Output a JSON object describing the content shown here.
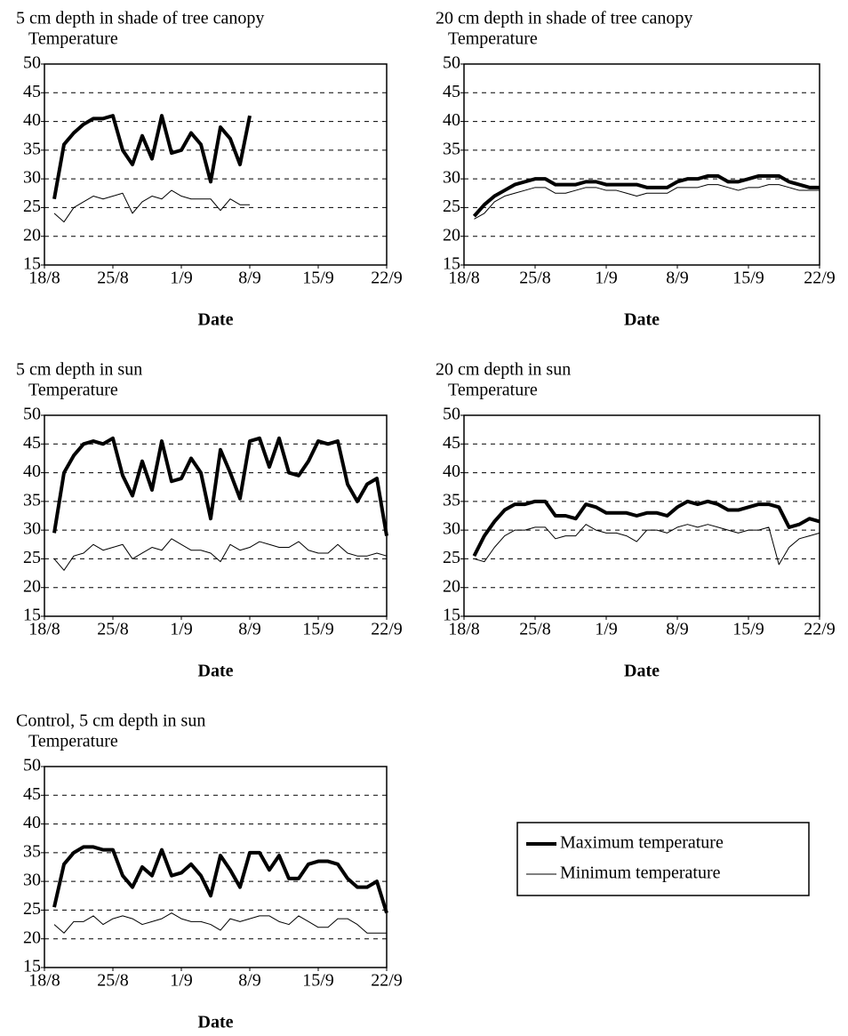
{
  "chart_data": [
    {
      "type": "line",
      "title": "5 cm depth in shade of tree canopy",
      "y_label": "Temperature",
      "x_label": "Date",
      "x": [
        "19/8",
        "20/8",
        "21/8",
        "22/8",
        "23/8",
        "24/8",
        "25/8",
        "26/8",
        "27/8",
        "28/8",
        "29/8",
        "30/8",
        "31/8",
        "1/9",
        "2/9",
        "3/9",
        "4/9",
        "5/9",
        "6/9",
        "7/9",
        "8/9"
      ],
      "series": [
        {
          "color": "#000000",
          "values": [
            26.5,
            36,
            38,
            39.5,
            40.5,
            40.5,
            41,
            35,
            32.5,
            37.5,
            33.5,
            41,
            34.5,
            35,
            38,
            36,
            29.5,
            39,
            37,
            32.5,
            41
          ]
        },
        {
          "color": "#000000",
          "values": [
            24,
            22.5,
            25,
            26,
            27,
            26.5,
            27,
            27.5,
            24,
            26,
            27,
            26.5,
            28,
            27,
            26.5,
            26.5,
            26.5,
            24.5,
            26.5,
            25.5,
            25.5
          ]
        }
      ],
      "xlim": [
        "18/8",
        "22/9"
      ],
      "xticks": [
        "18/8",
        "25/8",
        "1/9",
        "8/9",
        "15/9",
        "22/9"
      ],
      "ylim": [
        15,
        50
      ],
      "yticks": [
        15,
        20,
        25,
        30,
        35,
        40,
        45,
        50
      ],
      "grid": true
    },
    {
      "type": "line",
      "title": "20 cm depth in shade of tree canopy",
      "y_label": "Temperature",
      "x_label": "Date",
      "x": [
        "19/8",
        "20/8",
        "21/8",
        "22/8",
        "23/8",
        "24/8",
        "25/8",
        "26/8",
        "27/8",
        "28/8",
        "29/8",
        "30/8",
        "31/8",
        "1/9",
        "2/9",
        "3/9",
        "4/9",
        "5/9",
        "6/9",
        "7/9",
        "8/9",
        "9/9",
        "10/9",
        "11/9",
        "12/9",
        "13/9",
        "14/9",
        "15/9",
        "16/9",
        "17/9",
        "18/9",
        "19/9",
        "20/9",
        "21/9",
        "22/9"
      ],
      "series": [
        {
          "color": "#000000",
          "values": [
            23.5,
            25.5,
            27,
            28,
            29,
            29.5,
            30,
            30,
            29,
            29,
            29,
            29.5,
            29.5,
            29,
            29,
            29,
            29,
            28.5,
            28.5,
            28.5,
            29.5,
            30,
            30,
            30.5,
            30.5,
            29.5,
            29.5,
            30,
            30.5,
            30.5,
            30.5,
            29.5,
            29,
            28.5,
            28.5
          ]
        },
        {
          "color": "#000000",
          "values": [
            23,
            24,
            26,
            27,
            27.5,
            28,
            28.5,
            28.5,
            27.5,
            27.5,
            28,
            28.5,
            28.5,
            28,
            28,
            27.5,
            27,
            27.5,
            27.5,
            27.5,
            28.5,
            28.5,
            28.5,
            29,
            29,
            28.5,
            28,
            28.5,
            28.5,
            29,
            29,
            28.5,
            28,
            28,
            28
          ]
        }
      ],
      "xlim": [
        "18/8",
        "22/9"
      ],
      "xticks": [
        "18/8",
        "25/8",
        "1/9",
        "8/9",
        "15/9",
        "22/9"
      ],
      "ylim": [
        15,
        50
      ],
      "yticks": [
        15,
        20,
        25,
        30,
        35,
        40,
        45,
        50
      ],
      "grid": true
    },
    {
      "type": "line",
      "title": "5 cm depth in sun",
      "y_label": "Temperature",
      "x_label": "Date",
      "x": [
        "19/8",
        "20/8",
        "21/8",
        "22/8",
        "23/8",
        "24/8",
        "25/8",
        "26/8",
        "27/8",
        "28/8",
        "29/8",
        "30/8",
        "31/8",
        "1/9",
        "2/9",
        "3/9",
        "4/9",
        "5/9",
        "6/9",
        "7/9",
        "8/9",
        "9/9",
        "10/9",
        "11/9",
        "12/9",
        "13/9",
        "14/9",
        "15/9",
        "16/9",
        "17/9",
        "18/9",
        "19/9",
        "20/9",
        "21/9",
        "22/9"
      ],
      "series": [
        {
          "color": "#000000",
          "values": [
            29.5,
            40,
            43,
            45,
            45.5,
            45,
            46,
            39.5,
            36,
            42,
            37,
            45.5,
            38.5,
            39,
            42.5,
            40,
            32,
            44,
            40,
            35.5,
            45.5,
            46,
            41,
            46,
            40,
            39.5,
            42,
            45.5,
            45,
            45.5,
            38,
            35,
            38,
            39,
            29
          ]
        },
        {
          "color": "#000000",
          "values": [
            25,
            23,
            25.5,
            26,
            27.5,
            26.5,
            27,
            27.5,
            25,
            26,
            27,
            26.5,
            28.5,
            27.5,
            26.5,
            26.5,
            26,
            24.5,
            27.5,
            26.5,
            27,
            28,
            27.5,
            27,
            27,
            28,
            26.5,
            26,
            26,
            27.5,
            26,
            25.5,
            25.5,
            26,
            25.5
          ]
        }
      ],
      "xlim": [
        "18/8",
        "22/9"
      ],
      "xticks": [
        "18/8",
        "25/8",
        "1/9",
        "8/9",
        "15/9",
        "22/9"
      ],
      "ylim": [
        15,
        50
      ],
      "yticks": [
        15,
        20,
        25,
        30,
        35,
        40,
        45,
        50
      ],
      "grid": true
    },
    {
      "type": "line",
      "title": "20 cm depth in sun",
      "y_label": "Temperature",
      "x_label": "Date",
      "x": [
        "19/8",
        "20/8",
        "21/8",
        "22/8",
        "23/8",
        "24/8",
        "25/8",
        "26/8",
        "27/8",
        "28/8",
        "29/8",
        "30/8",
        "31/8",
        "1/9",
        "2/9",
        "3/9",
        "4/9",
        "5/9",
        "6/9",
        "7/9",
        "8/9",
        "9/9",
        "10/9",
        "11/9",
        "12/9",
        "13/9",
        "14/9",
        "15/9",
        "16/9",
        "17/9",
        "18/9",
        "19/9",
        "20/9",
        "21/9",
        "22/9"
      ],
      "series": [
        {
          "color": "#000000",
          "values": [
            25.5,
            29,
            31.5,
            33.5,
            34.5,
            34.5,
            35,
            35,
            32.5,
            32.5,
            32,
            34.5,
            34,
            33,
            33,
            33,
            32.5,
            33,
            33,
            32.5,
            34,
            35,
            34.5,
            35,
            34.5,
            33.5,
            33.5,
            34,
            34.5,
            34.5,
            34,
            30.5,
            31,
            32,
            31.5
          ]
        },
        {
          "color": "#000000",
          "values": [
            25,
            24.5,
            27,
            29,
            30,
            30,
            30.5,
            30.5,
            28.5,
            29,
            29,
            31,
            30,
            29.5,
            29.5,
            29,
            28,
            30,
            30,
            29.5,
            30.5,
            31,
            30.5,
            31,
            30.5,
            30,
            29.5,
            30,
            30,
            30.5,
            24,
            27,
            28.5,
            29,
            29.5
          ]
        }
      ],
      "xlim": [
        "18/8",
        "22/9"
      ],
      "xticks": [
        "18/8",
        "25/8",
        "1/9",
        "8/9",
        "15/9",
        "22/9"
      ],
      "ylim": [
        15,
        50
      ],
      "yticks": [
        15,
        20,
        25,
        30,
        35,
        40,
        45,
        50
      ],
      "grid": true
    },
    {
      "type": "line",
      "title": "Control, 5 cm depth in sun",
      "y_label": "Temperature",
      "x_label": "Date",
      "x": [
        "19/8",
        "20/8",
        "21/8",
        "22/8",
        "23/8",
        "24/8",
        "25/8",
        "26/8",
        "27/8",
        "28/8",
        "29/8",
        "30/8",
        "31/8",
        "1/9",
        "2/9",
        "3/9",
        "4/9",
        "5/9",
        "6/9",
        "7/9",
        "8/9",
        "9/9",
        "10/9",
        "11/9",
        "12/9",
        "13/9",
        "14/9",
        "15/9",
        "16/9",
        "17/9",
        "18/9",
        "19/9",
        "20/9",
        "21/9",
        "22/9"
      ],
      "series": [
        {
          "name": "Maximum temperature",
          "color": "#000000",
          "values": [
            25.5,
            33,
            35,
            36,
            36,
            35.5,
            35.5,
            31,
            29,
            32.5,
            31,
            35.5,
            31,
            31.5,
            33,
            31,
            27.5,
            34.5,
            32,
            29,
            35,
            35,
            32,
            34.5,
            30.5,
            30.5,
            33,
            33.5,
            33.5,
            33,
            30.5,
            29,
            29,
            30,
            24.5
          ]
        },
        {
          "name": "Minimum temperature",
          "color": "#000000",
          "values": [
            22.5,
            21,
            23,
            23,
            24,
            22.5,
            23.5,
            24,
            23.5,
            22.5,
            23,
            23.5,
            24.5,
            23.5,
            23,
            23,
            22.5,
            21.5,
            23.5,
            23,
            23.5,
            24,
            24,
            23,
            22.5,
            24,
            23,
            22,
            22,
            23.5,
            23.5,
            22.5,
            21,
            21,
            21
          ]
        }
      ],
      "xlim": [
        "18/8",
        "22/9"
      ],
      "xticks": [
        "18/8",
        "25/8",
        "1/9",
        "8/9",
        "15/9",
        "22/9"
      ],
      "ylim": [
        15,
        50
      ],
      "yticks": [
        15,
        20,
        25,
        30,
        35,
        40,
        45,
        50
      ],
      "grid": true,
      "legend": "right"
    }
  ]
}
